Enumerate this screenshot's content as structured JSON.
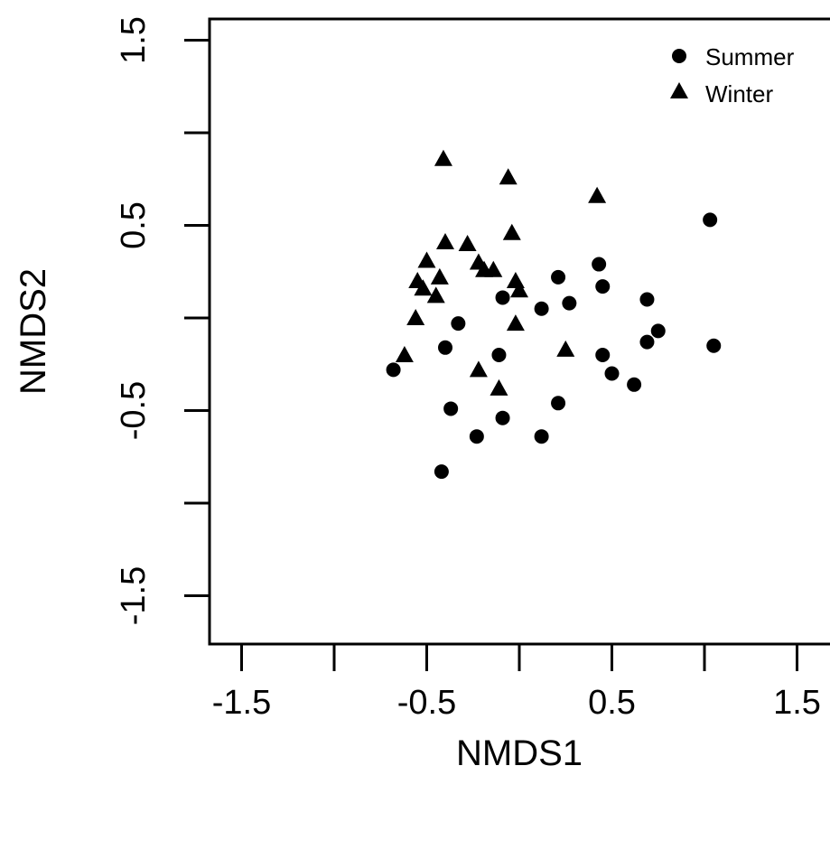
{
  "chart_data": {
    "type": "scatter",
    "xlabel": "NMDS1",
    "ylabel": "NMDS2",
    "xlim": [
      -1.85,
      1.5
    ],
    "ylim": [
      -1.85,
      1.82
    ],
    "xticks": [
      -1.5,
      -1.0,
      -0.5,
      0.0,
      0.5,
      1.0,
      1.5
    ],
    "xtick_labels": [
      "-1.5",
      "",
      "-0.5",
      "",
      "0.5",
      "",
      "1.5"
    ],
    "yticks": [
      -1.5,
      -1.0,
      -0.5,
      0.0,
      0.5,
      1.0,
      1.5
    ],
    "ytick_labels": [
      "-1.5",
      "",
      "-0.5",
      "",
      "0.5",
      "",
      "1.5"
    ],
    "legend_position": "top-right",
    "series": [
      {
        "name": "Summer",
        "marker": "circle",
        "color": "#000000",
        "points": [
          [
            -0.68,
            -0.28
          ],
          [
            -0.42,
            -0.83
          ],
          [
            -0.4,
            -0.16
          ],
          [
            -0.37,
            -0.49
          ],
          [
            -0.33,
            -0.03
          ],
          [
            -0.23,
            -0.64
          ],
          [
            -0.11,
            -0.2
          ],
          [
            -0.09,
            0.11
          ],
          [
            -0.09,
            -0.54
          ],
          [
            0.12,
            0.05
          ],
          [
            0.12,
            -0.64
          ],
          [
            0.21,
            0.22
          ],
          [
            0.21,
            -0.46
          ],
          [
            0.27,
            0.08
          ],
          [
            0.43,
            0.29
          ],
          [
            0.45,
            0.17
          ],
          [
            0.45,
            -0.2
          ],
          [
            0.5,
            -0.3
          ],
          [
            0.62,
            -0.36
          ],
          [
            0.69,
            0.1
          ],
          [
            0.69,
            -0.13
          ],
          [
            0.75,
            -0.07
          ],
          [
            1.03,
            0.53
          ],
          [
            1.05,
            -0.15
          ]
        ]
      },
      {
        "name": "Winter",
        "marker": "triangle",
        "color": "#000000",
        "points": [
          [
            -0.62,
            -0.2
          ],
          [
            -0.56,
            0.0
          ],
          [
            -0.55,
            0.2
          ],
          [
            -0.52,
            0.16
          ],
          [
            -0.5,
            0.31
          ],
          [
            -0.45,
            0.12
          ],
          [
            -0.43,
            0.22
          ],
          [
            -0.41,
            0.86
          ],
          [
            -0.4,
            0.41
          ],
          [
            -0.28,
            0.4
          ],
          [
            -0.22,
            0.3
          ],
          [
            -0.22,
            -0.28
          ],
          [
            -0.19,
            0.26
          ],
          [
            -0.14,
            0.26
          ],
          [
            -0.11,
            -0.38
          ],
          [
            -0.06,
            0.76
          ],
          [
            -0.04,
            0.46
          ],
          [
            -0.02,
            0.2
          ],
          [
            0.0,
            0.15
          ],
          [
            -0.02,
            -0.03
          ],
          [
            0.25,
            -0.17
          ],
          [
            0.42,
            0.66
          ]
        ]
      }
    ]
  }
}
